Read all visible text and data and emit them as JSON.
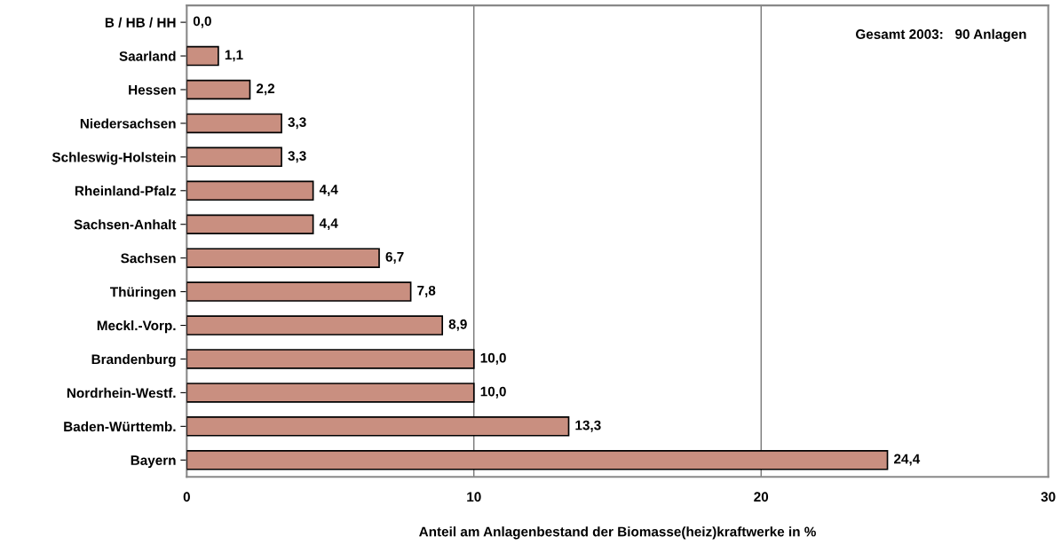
{
  "chart_data": {
    "type": "bar",
    "orientation": "horizontal",
    "xlabel": "Anteil am Anlagenbestand der Biomasse(heiz)kraftwerke in %",
    "categories": [
      "B / HB / HH",
      "Saarland",
      "Hessen",
      "Niedersachsen",
      "Schleswig-Holstein",
      "Rheinland-Pfalz",
      "Sachsen-Anhalt",
      "Sachsen",
      "Thüringen",
      "Meckl.-Vorp.",
      "Brandenburg",
      "Nordrhein-Westf.",
      "Baden-Württemb.",
      "Bayern"
    ],
    "values": [
      0.0,
      1.1,
      2.2,
      3.3,
      3.3,
      4.4,
      4.4,
      6.7,
      7.8,
      8.9,
      10.0,
      10.0,
      13.3,
      24.4
    ],
    "value_labels": [
      "0,0",
      "1,1",
      "2,2",
      "3,3",
      "3,3",
      "4,4",
      "4,4",
      "6,7",
      "7,8",
      "8,9",
      "10,0",
      "10,0",
      "13,3",
      "24,4"
    ],
    "color": "#c98f80",
    "xlim": [
      0,
      30
    ],
    "xticks": [
      0,
      10,
      20,
      30
    ],
    "grid": "x",
    "annotations": [
      "Gesamt 2003:   90 Anlagen"
    ]
  }
}
